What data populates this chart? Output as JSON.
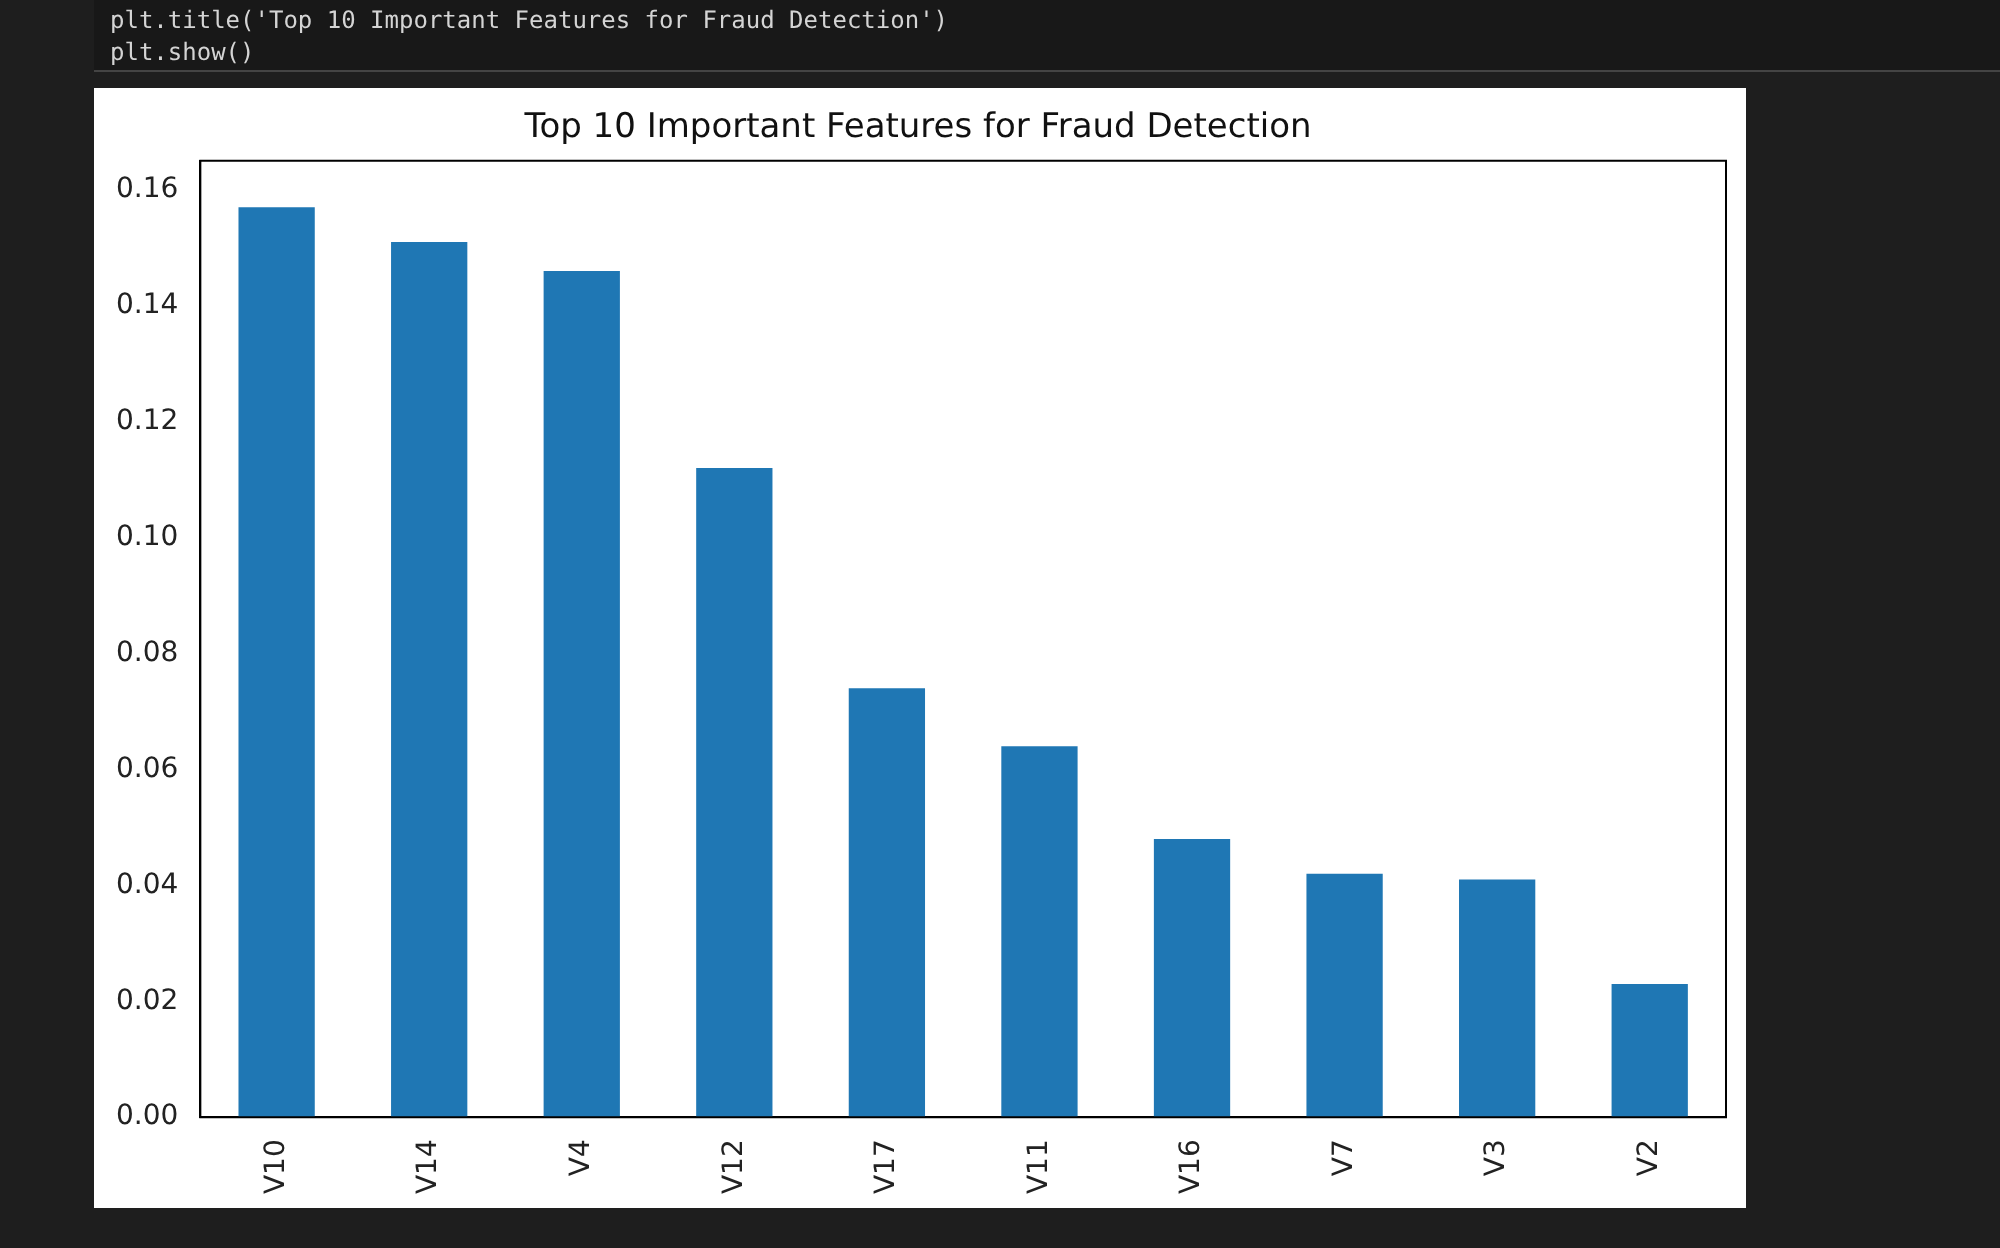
{
  "chart_data": {
    "type": "bar",
    "title": "Top 10 Important Features for Fraud Detection",
    "categories": [
      "V10",
      "V14",
      "V4",
      "V12",
      "V17",
      "V11",
      "V16",
      "V7",
      "V3",
      "V2"
    ],
    "values": [
      0.157,
      0.151,
      0.146,
      0.112,
      0.074,
      0.064,
      0.048,
      0.042,
      0.041,
      0.023
    ],
    "color": "#1f77b4",
    "ylim": [
      0,
      0.165
    ],
    "yticks": [
      {
        "value": 0,
        "label": "0.00"
      },
      {
        "value": 0.02,
        "label": "0.02"
      },
      {
        "value": 0.04,
        "label": "0.04"
      },
      {
        "value": 0.06,
        "label": "0.06"
      },
      {
        "value": 0.08,
        "label": "0.08"
      },
      {
        "value": 0.1,
        "label": "0.10"
      },
      {
        "value": 0.12,
        "label": "0.12"
      },
      {
        "value": 0.14,
        "label": "0.14"
      },
      {
        "value": 0.16,
        "label": "0.16"
      }
    ],
    "grid": false,
    "legend": false,
    "annotations": [
      "plt.title('Top 10 Important Features for Fraud Detection')",
      "plt.show()"
    ]
  }
}
